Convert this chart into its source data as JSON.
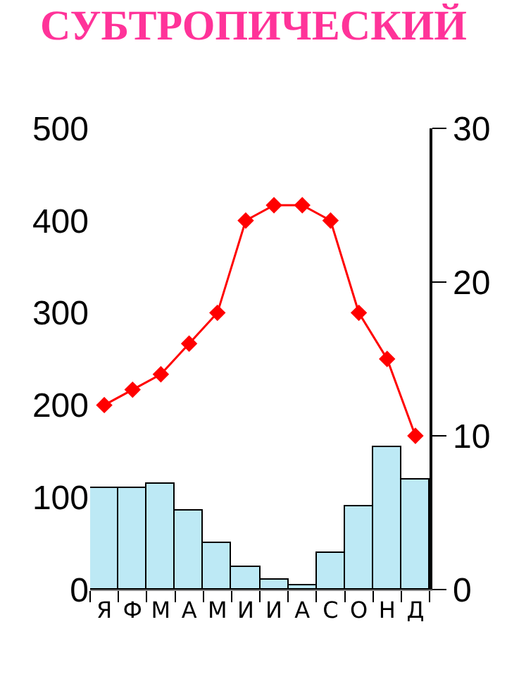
{
  "chart_data": {
    "type": "bar",
    "title": "СУБТРОПИЧЕСКИЙ",
    "categories": [
      "Я",
      "Ф",
      "М",
      "А",
      "М",
      "И",
      "И",
      "А",
      "С",
      "О",
      "Н",
      "Д"
    ],
    "series": [
      {
        "color": "#bde9f5",
        "values": [
          110,
          110,
          114,
          85,
          50,
          25,
          10,
          5,
          40,
          90,
          155,
          120
        ]
      },
      {
        "type": "line",
        "axis": "y2",
        "color": "#ff0000",
        "marker": "diamond",
        "values": [
          12,
          13,
          14,
          16,
          18,
          24,
          25,
          25,
          24,
          18,
          15,
          10
        ]
      }
    ],
    "ylim": [
      0,
      500
    ],
    "yticks": [
      0,
      100,
      200,
      300,
      400,
      500
    ],
    "y2lim": [
      0,
      30
    ],
    "y2ticks": [
      0,
      10,
      20,
      30
    ],
    "legend": false
  }
}
